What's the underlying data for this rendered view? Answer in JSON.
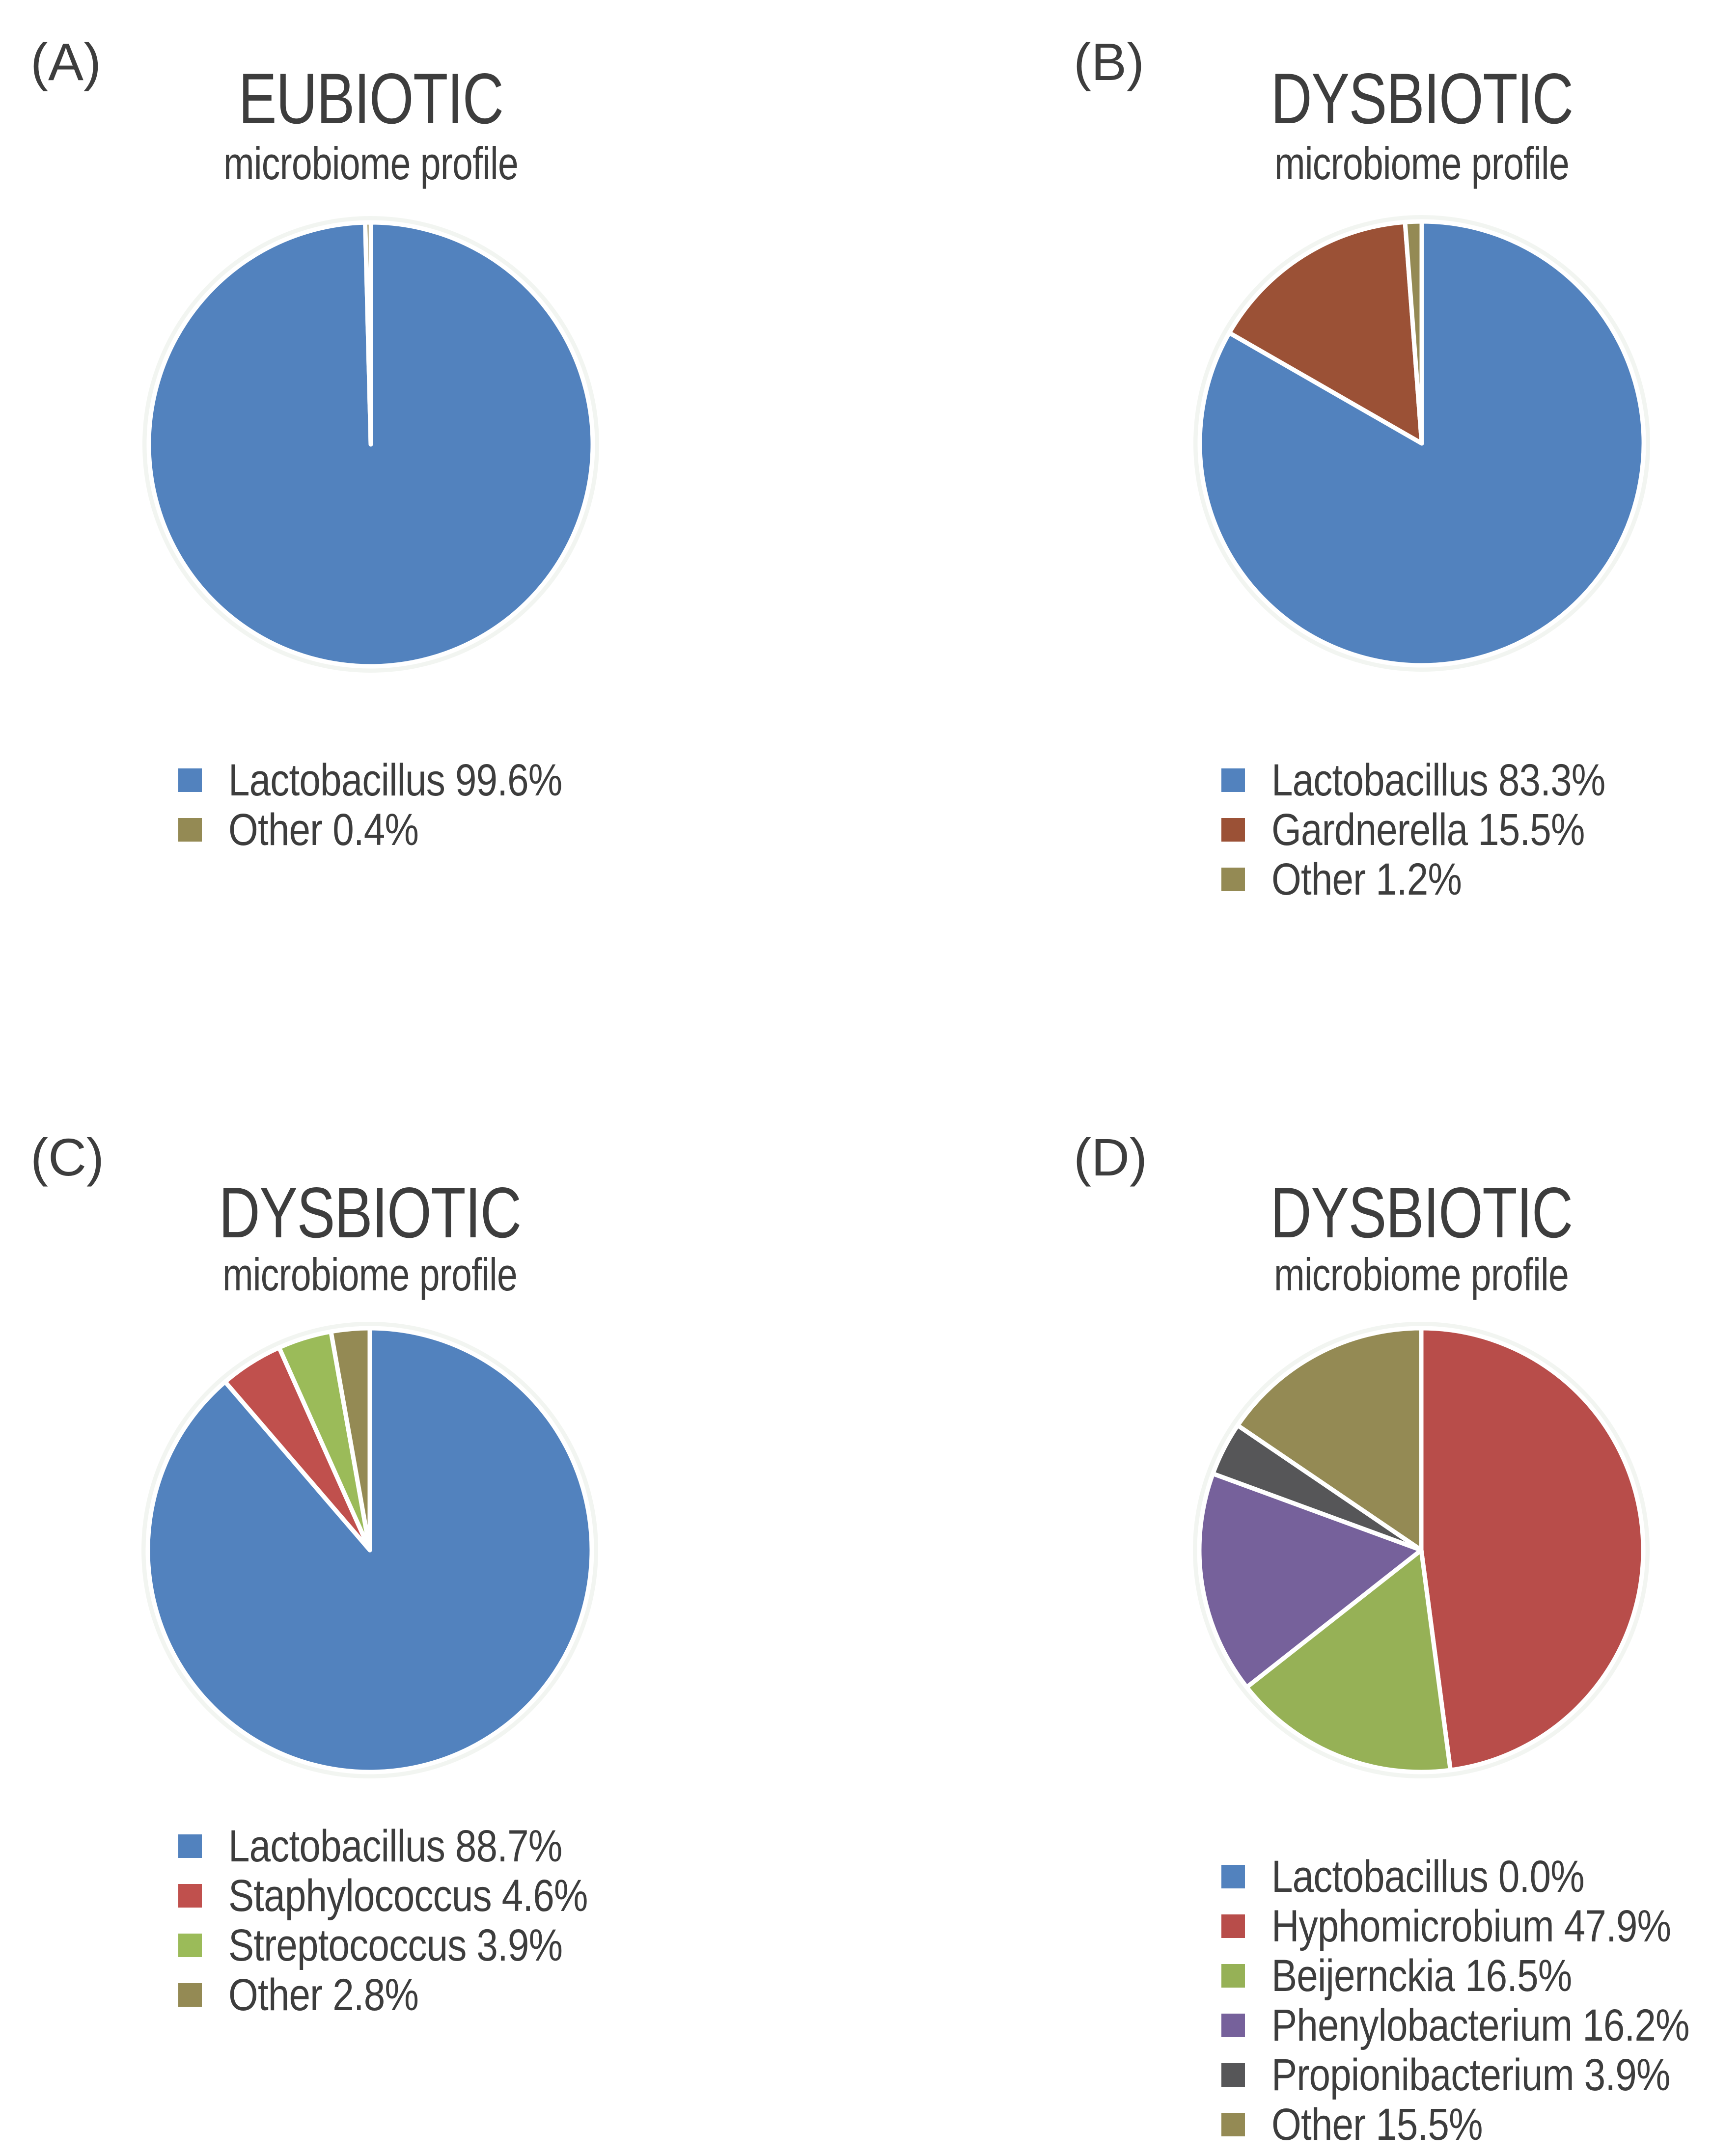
{
  "chart_data": [
    {
      "type": "pie",
      "panel_label": "(A)",
      "title": "EUBIOTIC",
      "subtitle": "microbiome profile",
      "legend_position": "bottom-left",
      "grid": false,
      "slices": [
        {
          "label": "Lactobacillus",
          "value": 99.6,
          "color": "#5282BE"
        },
        {
          "label": "Other",
          "value": 0.4,
          "color": "#948A54"
        }
      ]
    },
    {
      "type": "pie",
      "panel_label": "(B)",
      "title": "DYSBIOTIC",
      "subtitle": "microbiome profile",
      "legend_position": "bottom-left",
      "grid": false,
      "slices": [
        {
          "label": "Lactobacillus",
          "value": 83.3,
          "color": "#5282BE"
        },
        {
          "label": "Gardnerella",
          "value": 15.5,
          "color": "#9B5136"
        },
        {
          "label": "Other",
          "value": 1.2,
          "color": "#948A54"
        }
      ]
    },
    {
      "type": "pie",
      "panel_label": "(C)",
      "title": "DYSBIOTIC",
      "subtitle": "microbiome profile",
      "legend_position": "bottom-left",
      "grid": false,
      "slices": [
        {
          "label": "Lactobacillus",
          "value": 88.7,
          "color": "#5282BE"
        },
        {
          "label": "Staphylococcus",
          "value": 4.6,
          "color": "#C0504D"
        },
        {
          "label": "Streptococcus",
          "value": 3.9,
          "color": "#9BBB59"
        },
        {
          "label": "Other",
          "value": 2.8,
          "color": "#948A54"
        }
      ]
    },
    {
      "type": "pie",
      "panel_label": "(D)",
      "title": "DYSBIOTIC",
      "subtitle": "microbiome profile",
      "legend_position": "bottom-left",
      "grid": false,
      "slices": [
        {
          "label": "Lactobacillus",
          "value": 0.0,
          "color": "#5282BE"
        },
        {
          "label": "Hyphomicrobium",
          "value": 47.9,
          "color": "#B84D4A"
        },
        {
          "label": "Beijernckia",
          "value": 16.5,
          "color": "#96B156"
        },
        {
          "label": "Phenylobacterium",
          "value": 16.2,
          "color": "#76619B"
        },
        {
          "label": "Propionibacterium",
          "value": 3.9,
          "color": "#565658"
        },
        {
          "label": "Other",
          "value": 15.5,
          "color": "#948A54"
        }
      ]
    }
  ],
  "styles": {
    "text_color": "#3D3D3D",
    "background": "#FFFFFF",
    "slice_border": "#FFFFFF",
    "halo_color": "#F2F5F1",
    "percent_suffix": "%"
  }
}
